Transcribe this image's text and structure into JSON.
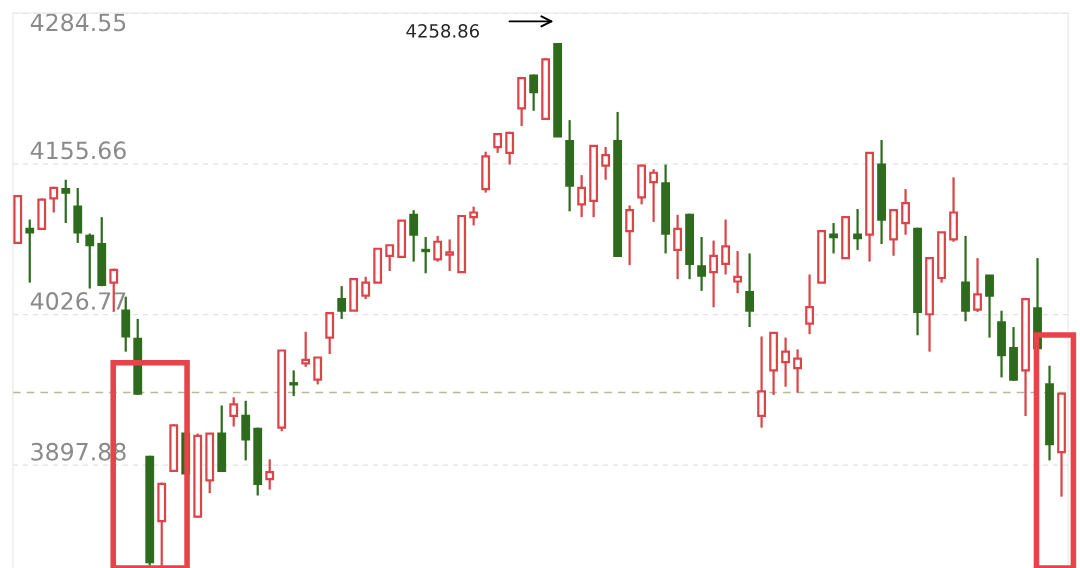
{
  "chart_data": {
    "type": "candlestick",
    "categories": [
      null,
      null,
      null,
      null,
      null,
      null,
      null,
      null,
      null,
      null,
      null,
      null,
      null,
      null,
      null,
      null,
      null,
      null,
      null,
      null,
      null,
      null,
      null,
      null,
      null,
      null,
      null,
      null,
      null,
      null,
      null,
      null,
      null,
      null,
      null,
      null,
      null,
      null,
      null,
      null,
      null,
      null,
      null,
      null,
      null,
      null,
      null,
      null,
      null,
      null,
      null,
      null,
      null,
      null,
      null,
      null,
      null,
      null,
      null,
      null,
      null,
      null,
      null,
      null,
      null,
      null,
      null,
      null,
      null,
      null,
      null,
      null,
      null,
      null,
      null,
      null,
      null,
      null,
      null,
      null,
      null,
      null,
      null,
      null,
      null,
      null,
      null,
      null
    ],
    "ohlc": [
      [
        4088,
        4129,
        4087,
        4128
      ],
      [
        4100,
        4108,
        4054,
        4097
      ],
      [
        4100,
        4126,
        4099,
        4125
      ],
      [
        4126,
        4136,
        4114,
        4135
      ],
      [
        4134,
        4142,
        4105,
        4131
      ],
      [
        4119,
        4135,
        4088,
        4097
      ],
      [
        4094,
        4096,
        4049,
        4086
      ],
      [
        4087,
        4110,
        4051,
        4052
      ],
      [
        4054,
        4066,
        4029,
        4065
      ],
      [
        4030,
        4042,
        3995,
        4008
      ],
      [
        4006,
        4023,
        3958,
        3959
      ],
      [
        3905,
        3906,
        3812,
        3815
      ],
      [
        3850,
        3883,
        3812,
        3882
      ],
      [
        3893,
        3933,
        3892,
        3932
      ],
      [
        3925,
        3926,
        3890,
        3891
      ],
      [
        3854,
        3925,
        3853,
        3923
      ],
      [
        3885,
        3925,
        3874,
        3925
      ],
      [
        3925,
        3949,
        3892,
        3893
      ],
      [
        3940,
        3956,
        3931,
        3950
      ],
      [
        3940,
        3953,
        3902,
        3920
      ],
      [
        3929,
        3930,
        3872,
        3882
      ],
      [
        3886,
        3903,
        3877,
        3892
      ],
      [
        3930,
        3996,
        3927,
        3996
      ],
      [
        3968,
        3979,
        3957,
        3967
      ],
      [
        3985,
        4012,
        3982,
        3988
      ],
      [
        3971,
        3990,
        3967,
        3990
      ],
      [
        4007,
        4028,
        3993,
        4028
      ],
      [
        4040,
        4051,
        4023,
        4030
      ],
      [
        4030,
        4058,
        4030,
        4057
      ],
      [
        4043,
        4059,
        4040,
        4054
      ],
      [
        4054,
        4083,
        4054,
        4083
      ],
      [
        4077,
        4086,
        4064,
        4086
      ],
      [
        4076,
        4107,
        4076,
        4107
      ],
      [
        4112,
        4116,
        4072,
        4095
      ],
      [
        4082,
        4093,
        4062,
        4081
      ],
      [
        4074,
        4094,
        4072,
        4089
      ],
      [
        4078,
        4091,
        4064,
        4080
      ],
      [
        4063,
        4111,
        4063,
        4111
      ],
      [
        4110,
        4119,
        4103,
        4114
      ],
      [
        4134,
        4166,
        4131,
        4162
      ],
      [
        4170,
        4182,
        4165,
        4181
      ],
      [
        4165,
        4183,
        4155,
        4182
      ],
      [
        4203,
        4230,
        4188,
        4229
      ],
      [
        4231,
        4232,
        4201,
        4217
      ],
      [
        4194,
        4246,
        4193,
        4245
      ],
      [
        4258,
        4258.86,
        4179,
        4179
      ],
      [
        4175,
        4193,
        4115,
        4137
      ],
      [
        4121,
        4146,
        4110,
        4135
      ],
      [
        4124,
        4171,
        4110,
        4171
      ],
      [
        4154,
        4170,
        4142,
        4163
      ],
      [
        4175,
        4200,
        4076,
        4077
      ],
      [
        4098,
        4120,
        4069,
        4116
      ],
      [
        4127,
        4155,
        4121,
        4154
      ],
      [
        4140,
        4151,
        4106,
        4148
      ],
      [
        4139,
        4155,
        4079,
        4096
      ],
      [
        4082,
        4112,
        4057,
        4100
      ],
      [
        4112,
        4113,
        4057,
        4070
      ],
      [
        4068,
        4093,
        4047,
        4060
      ],
      [
        4063,
        4090,
        4033,
        4077
      ],
      [
        4070,
        4108,
        4061,
        4085
      ],
      [
        4055,
        4081,
        4045,
        4059
      ],
      [
        4046,
        4079,
        4016,
        4030
      ],
      [
        3940,
        4008,
        3930,
        3961
      ],
      [
        3979,
        4011,
        3958,
        4011
      ],
      [
        3986,
        4007,
        3965,
        3995
      ],
      [
        3981,
        3997,
        3960,
        3989
      ],
      [
        4019,
        4061,
        4010,
        4033
      ],
      [
        4054,
        4098,
        4054,
        4098
      ],
      [
        4095,
        4105,
        4079,
        4093
      ],
      [
        4075,
        4110,
        4075,
        4110
      ],
      [
        4095,
        4117,
        4082,
        4092
      ],
      [
        4095,
        4165,
        4072,
        4165
      ],
      [
        4155,
        4176,
        4087,
        4108
      ],
      [
        4091,
        4117,
        4077,
        4116
      ],
      [
        4105,
        4134,
        4095,
        4122
      ],
      [
        4100,
        4101,
        4009,
        4029
      ],
      [
        4027,
        4075,
        3995,
        4075
      ],
      [
        4058,
        4097,
        4054,
        4097
      ],
      [
        4091,
        4144,
        4089,
        4114
      ],
      [
        4054,
        4094,
        4021,
        4030
      ],
      [
        4031,
        4075,
        4029,
        4044
      ],
      [
        4060,
        4060,
        4007,
        4043
      ],
      [
        4020,
        4030,
        3973,
        3992
      ],
      [
        3998,
        4016,
        3970,
        3971
      ],
      [
        3979,
        4040,
        3940,
        4040
      ],
      [
        4032,
        4075,
        3997,
        3998
      ],
      [
        3967,
        3983,
        3902,
        3916
      ],
      [
        3909,
        3959,
        3871,
        3959
      ]
    ],
    "colors": [
      "#d9454b",
      "#2f6b1e",
      "#d9454b",
      "#d9454b",
      "#2f6b1e",
      "#2f6b1e",
      "#2f6b1e",
      "#2f6b1e",
      "#d9454b",
      "#2f6b1e",
      "#2f6b1e",
      "#2f6b1e",
      "#d9454b",
      "#d9454b",
      "#2f6b1e",
      "#d9454b",
      "#d9454b",
      "#2f6b1e",
      "#d9454b",
      "#2f6b1e",
      "#2f6b1e",
      "#d9454b",
      "#d9454b",
      "#2f6b1e",
      "#d9454b",
      "#d9454b",
      "#d9454b",
      "#2f6b1e",
      "#d9454b",
      "#d9454b",
      "#d9454b",
      "#d9454b",
      "#d9454b",
      "#2f6b1e",
      "#2f6b1e",
      "#d9454b",
      "#d9454b",
      "#d9454b",
      "#d9454b",
      "#d9454b",
      "#d9454b",
      "#d9454b",
      "#d9454b",
      "#2f6b1e",
      "#d9454b",
      "#2f6b1e",
      "#2f6b1e",
      "#d9454b",
      "#d9454b",
      "#d9454b",
      "#2f6b1e",
      "#d9454b",
      "#d9454b",
      "#d9454b",
      "#2f6b1e",
      "#d9454b",
      "#2f6b1e",
      "#2f6b1e",
      "#d9454b",
      "#d9454b",
      "#d9454b",
      "#2f6b1e",
      "#d9454b",
      "#d9454b",
      "#d9454b",
      "#d9454b",
      "#d9454b",
      "#d9454b",
      "#2f6b1e",
      "#d9454b",
      "#2f6b1e",
      "#d9454b",
      "#2f6b1e",
      "#d9454b",
      "#d9454b",
      "#2f6b1e",
      "#d9454b",
      "#d9454b",
      "#d9454b",
      "#2f6b1e",
      "#d9454b",
      "#2f6b1e",
      "#2f6b1e",
      "#2f6b1e",
      "#d9454b",
      "#2f6b1e",
      "#2f6b1e",
      "#d9454b"
    ],
    "ylim": [
      3810,
      4284.55
    ],
    "yticks": [
      4284.55,
      4155.66,
      4026.77,
      3897.88
    ],
    "tick_labels": "y",
    "grid": "y",
    "ref_lines": [
      {
        "axis": "y",
        "value": 3960,
        "color": "#b8b89a",
        "line_style": "dashed"
      }
    ],
    "annotations": [
      "4258.86"
    ]
  }
}
